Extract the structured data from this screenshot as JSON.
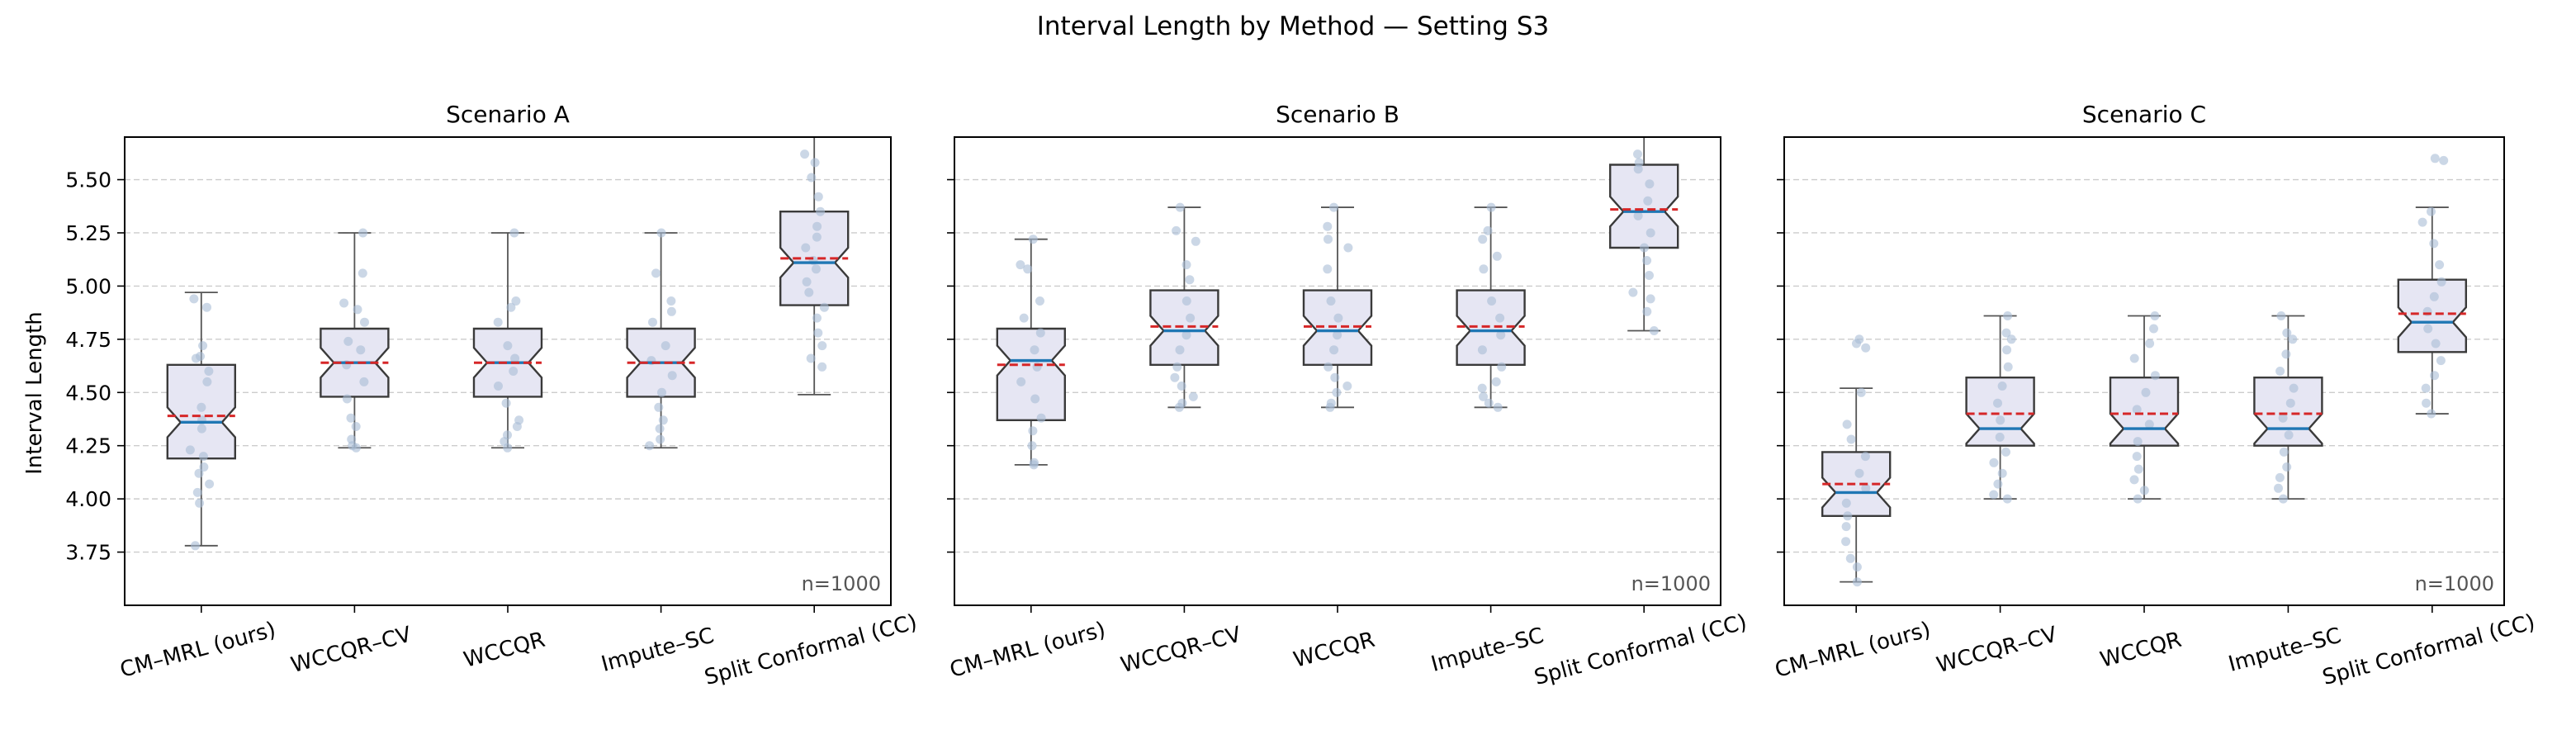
{
  "figure_title": "Interval Length by Method — Setting S3",
  "y_axis_label": "Interval Length",
  "colors": {
    "box_fill": "#e6e6f3",
    "box_edge": "#3a3a3a",
    "median": "#1f77b4",
    "mean": "#d62728",
    "points": "#a9bcd6",
    "grid": "#cccccc"
  },
  "chart_data": [
    {
      "type": "boxplot",
      "title": "Scenario A",
      "annotation": "n=1000",
      "ylim": [
        3.5,
        5.7
      ],
      "yticks": [
        "3.75",
        "4.00",
        "4.25",
        "4.50",
        "4.75",
        "5.00",
        "5.25",
        "5.50"
      ],
      "categories": [
        "CM–MRL (ours)",
        "WCCQR–CV",
        "WCCQR",
        "Impute–SC",
        "Split Conformal (CC)"
      ],
      "boxes": [
        {
          "whislo": 3.78,
          "q1": 4.19,
          "med": 4.36,
          "mean": 4.39,
          "q3": 4.63,
          "whishi": 4.97,
          "points": [
            4.94,
            4.9,
            4.72,
            4.67,
            4.66,
            4.6,
            4.55,
            4.43,
            4.37,
            4.33,
            4.23,
            4.2,
            4.15,
            4.12,
            4.07,
            4.03,
            3.98,
            3.78
          ]
        },
        {
          "whislo": 4.24,
          "q1": 4.48,
          "med": 4.64,
          "mean": 4.64,
          "q3": 4.8,
          "whishi": 5.25,
          "points": [
            5.25,
            5.06,
            4.92,
            4.89,
            4.83,
            4.74,
            4.7,
            4.63,
            4.55,
            4.47,
            4.38,
            4.34,
            4.28,
            4.25,
            4.24
          ]
        },
        {
          "whislo": 4.24,
          "q1": 4.48,
          "med": 4.64,
          "mean": 4.64,
          "q3": 4.8,
          "whishi": 5.25,
          "points": [
            5.25,
            4.93,
            4.9,
            4.83,
            4.72,
            4.66,
            4.6,
            4.53,
            4.45,
            4.37,
            4.34,
            4.3,
            4.27,
            4.24
          ]
        },
        {
          "whislo": 4.24,
          "q1": 4.48,
          "med": 4.64,
          "mean": 4.64,
          "q3": 4.8,
          "whishi": 5.25,
          "points": [
            5.25,
            5.06,
            4.93,
            4.88,
            4.83,
            4.72,
            4.65,
            4.58,
            4.5,
            4.43,
            4.37,
            4.33,
            4.28,
            4.25
          ]
        },
        {
          "whislo": 4.49,
          "q1": 4.91,
          "med": 5.11,
          "mean": 5.13,
          "q3": 5.35,
          "whishi": 5.7,
          "points": [
            5.62,
            5.58,
            5.51,
            5.42,
            5.35,
            5.28,
            5.23,
            5.18,
            5.12,
            5.08,
            5.02,
            4.97,
            4.9,
            4.85,
            4.78,
            4.72,
            4.66,
            4.62
          ]
        }
      ]
    },
    {
      "type": "boxplot",
      "title": "Scenario B",
      "annotation": "n=1000",
      "ylim": [
        3.5,
        5.7
      ],
      "yticks": [
        "3.75",
        "4.00",
        "4.25",
        "4.50",
        "4.75",
        "5.00",
        "5.25",
        "5.50"
      ],
      "categories": [
        "CM–MRL (ours)",
        "WCCQR–CV",
        "WCCQR",
        "Impute–SC",
        "Split Conformal (CC)"
      ],
      "boxes": [
        {
          "whislo": 4.16,
          "q1": 4.37,
          "med": 4.65,
          "mean": 4.63,
          "q3": 4.8,
          "whishi": 5.22,
          "points": [
            5.22,
            5.1,
            5.08,
            4.93,
            4.85,
            4.78,
            4.7,
            4.62,
            4.55,
            4.47,
            4.38,
            4.32,
            4.25,
            4.17,
            4.16
          ]
        },
        {
          "whislo": 4.43,
          "q1": 4.63,
          "med": 4.79,
          "mean": 4.81,
          "q3": 4.98,
          "whishi": 5.37,
          "points": [
            5.37,
            5.26,
            5.21,
            5.1,
            5.03,
            4.93,
            4.85,
            4.77,
            4.7,
            4.62,
            4.57,
            4.53,
            4.48,
            4.45,
            4.43
          ]
        },
        {
          "whislo": 4.43,
          "q1": 4.63,
          "med": 4.79,
          "mean": 4.81,
          "q3": 4.98,
          "whishi": 5.37,
          "points": [
            5.37,
            5.28,
            5.22,
            5.18,
            5.08,
            4.93,
            4.85,
            4.77,
            4.7,
            4.62,
            4.57,
            4.53,
            4.5,
            4.45,
            4.43
          ]
        },
        {
          "whislo": 4.43,
          "q1": 4.63,
          "med": 4.79,
          "mean": 4.81,
          "q3": 4.98,
          "whishi": 5.37,
          "points": [
            5.37,
            5.26,
            5.22,
            5.14,
            5.08,
            4.93,
            4.85,
            4.77,
            4.7,
            4.62,
            4.55,
            4.52,
            4.48,
            4.45,
            4.43
          ]
        },
        {
          "whislo": 4.79,
          "q1": 5.18,
          "med": 5.35,
          "mean": 5.36,
          "q3": 5.57,
          "whishi": 5.7,
          "points": [
            5.62,
            5.58,
            5.55,
            5.48,
            5.4,
            5.33,
            5.25,
            5.18,
            5.12,
            5.05,
            4.97,
            4.94,
            4.88,
            4.79
          ]
        }
      ]
    },
    {
      "type": "boxplot",
      "title": "Scenario C",
      "annotation": "n=1000",
      "ylim": [
        3.5,
        5.7
      ],
      "yticks": [
        "3.75",
        "4.00",
        "4.25",
        "4.50",
        "4.75",
        "5.00",
        "5.25",
        "5.50"
      ],
      "categories": [
        "CM–MRL (ours)",
        "WCCQR–CV",
        "WCCQR",
        "Impute–SC",
        "Split Conformal (CC)"
      ],
      "boxes": [
        {
          "whislo": 3.61,
          "q1": 3.92,
          "med": 4.03,
          "mean": 4.07,
          "q3": 4.22,
          "whishi": 4.52,
          "points": [
            4.75,
            4.73,
            4.71,
            4.5,
            4.35,
            4.28,
            4.2,
            4.12,
            4.05,
            3.98,
            3.92,
            3.87,
            3.8,
            3.72,
            3.68,
            3.61
          ]
        },
        {
          "whislo": 4.0,
          "q1": 4.25,
          "med": 4.33,
          "mean": 4.4,
          "q3": 4.57,
          "whishi": 4.86,
          "points": [
            4.86,
            4.78,
            4.75,
            4.7,
            4.62,
            4.53,
            4.45,
            4.37,
            4.29,
            4.22,
            4.17,
            4.12,
            4.07,
            4.02,
            4.0
          ]
        },
        {
          "whislo": 4.0,
          "q1": 4.25,
          "med": 4.33,
          "mean": 4.4,
          "q3": 4.57,
          "whishi": 4.86,
          "points": [
            4.86,
            4.8,
            4.73,
            4.66,
            4.58,
            4.5,
            4.42,
            4.35,
            4.27,
            4.2,
            4.14,
            4.09,
            4.04,
            4.0
          ]
        },
        {
          "whislo": 4.0,
          "q1": 4.25,
          "med": 4.33,
          "mean": 4.4,
          "q3": 4.57,
          "whishi": 4.86,
          "points": [
            4.86,
            4.78,
            4.75,
            4.68,
            4.6,
            4.52,
            4.45,
            4.38,
            4.3,
            4.22,
            4.15,
            4.1,
            4.05,
            4.0
          ]
        },
        {
          "whislo": 4.4,
          "q1": 4.69,
          "med": 4.83,
          "mean": 4.87,
          "q3": 5.03,
          "whishi": 5.37,
          "points": [
            5.6,
            5.59,
            5.35,
            5.3,
            5.2,
            5.1,
            5.02,
            4.95,
            4.88,
            4.8,
            4.73,
            4.65,
            4.58,
            4.52,
            4.45,
            4.4
          ]
        }
      ]
    }
  ]
}
